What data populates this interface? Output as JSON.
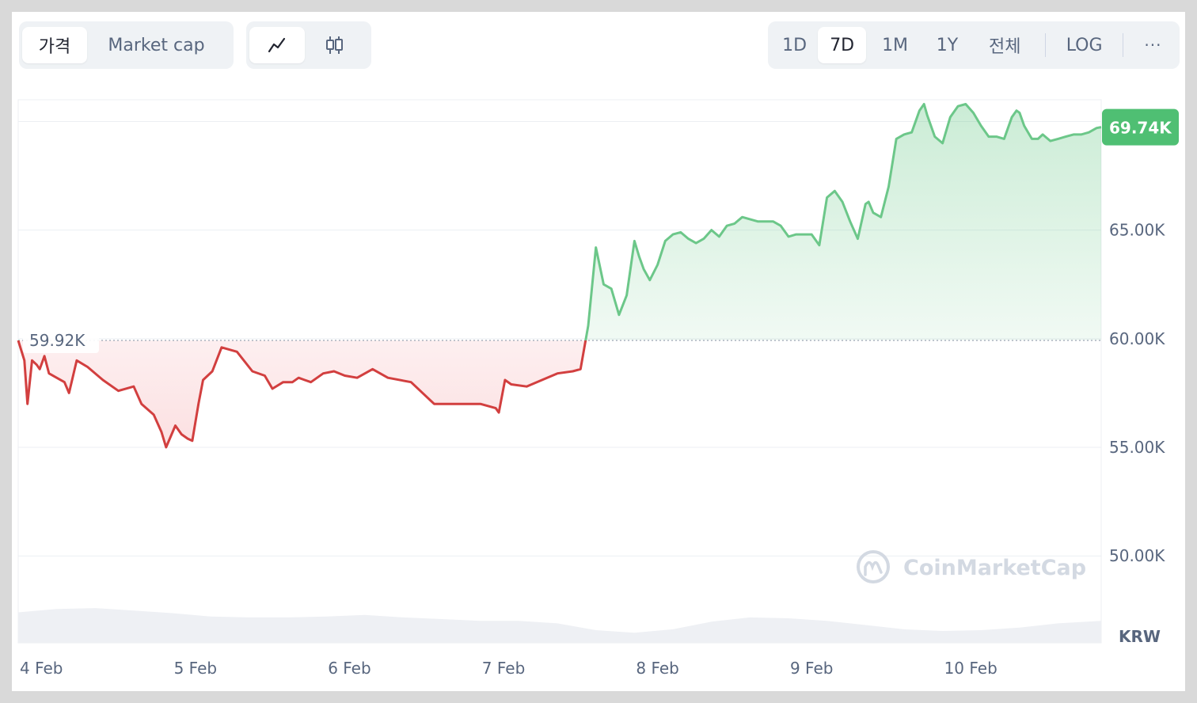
{
  "toolbar": {
    "type_tabs": [
      "가격",
      "Market cap"
    ],
    "active_type": "가격",
    "chart_modes": [
      "line-chart-icon",
      "candlestick-icon"
    ],
    "active_mode": "line-chart-icon",
    "ranges": [
      "1D",
      "7D",
      "1M",
      "1Y",
      "전체"
    ],
    "active_range": "7D",
    "log_label": "LOG",
    "more_label": "···"
  },
  "colors": {
    "up": "#4fbf73",
    "down": "#ea3943",
    "line_up": "#6cc789",
    "line_down": "#d23f3f",
    "grid": "#eceff3",
    "axis_text": "#58667e",
    "volume": "#eef0f4"
  },
  "watermark": "CoinMarketCap",
  "chart_data": {
    "type": "line",
    "currency": "KRW",
    "ylim": [
      46000,
      71000
    ],
    "y_ticks": [
      50000,
      55000,
      60000,
      65000
    ],
    "y_tick_labels": [
      "50.00K",
      "55.00K",
      "60.00K",
      "65.00K"
    ],
    "x_ticks": [
      "4 Feb",
      "5 Feb",
      "6 Feb",
      "7 Feb",
      "8 Feb",
      "9 Feb",
      "10 Feb"
    ],
    "x_range_days": [
      0,
      7.03
    ],
    "open_price": 59920,
    "open_label": "59.92K",
    "current_price": 69740,
    "current_label": "69.74K",
    "grid": true,
    "series": [
      {
        "x": [
          0,
          0.04,
          0.06,
          0.09,
          0.12,
          0.14,
          0.17,
          0.2,
          0.25,
          0.3,
          0.33,
          0.38,
          0.45,
          0.55,
          0.65,
          0.75,
          0.8,
          0.88,
          0.93,
          0.96,
          1.02,
          1.06,
          1.1,
          1.13,
          1.17,
          1.2,
          1.26,
          1.32,
          1.42,
          1.52,
          1.6,
          1.65,
          1.72,
          1.78,
          1.82,
          1.86,
          1.9,
          1.98,
          2.05,
          2.12,
          2.2,
          2.3,
          2.4,
          2.55,
          2.7,
          2.85,
          3.0,
          3.1,
          3.12,
          3.16,
          3.2,
          3.3,
          3.4,
          3.5,
          3.6,
          3.65,
          3.7,
          3.75,
          3.8,
          3.85,
          3.9,
          3.95,
          4.0,
          4.03,
          4.06,
          4.1,
          4.15,
          4.2,
          4.25,
          4.3,
          4.35,
          4.4,
          4.45,
          4.5,
          4.55,
          4.6,
          4.65,
          4.7,
          4.75,
          4.8,
          4.85,
          4.9,
          4.95,
          5.0,
          5.05,
          5.1,
          5.15,
          5.2,
          5.25,
          5.3,
          5.35,
          5.4,
          5.45,
          5.5,
          5.52,
          5.55,
          5.6,
          5.65,
          5.7,
          5.75,
          5.8,
          5.85,
          5.88,
          5.9,
          5.95,
          6.0,
          6.05,
          6.1,
          6.15,
          6.2,
          6.25,
          6.3,
          6.35,
          6.4,
          6.45,
          6.48,
          6.5,
          6.53,
          6.58,
          6.62,
          6.65,
          6.7,
          6.75,
          6.8,
          6.85,
          6.9,
          6.95,
          7.0,
          7.03
        ],
        "y": [
          59920,
          59000,
          57000,
          59000,
          58800,
          58600,
          59200,
          58400,
          58200,
          58000,
          57500,
          59000,
          58700,
          58100,
          57600,
          57800,
          57000,
          56500,
          55700,
          55000,
          56000,
          55600,
          55400,
          55300,
          57000,
          58100,
          58500,
          59600,
          59400,
          58500,
          58300,
          57700,
          58000,
          58000,
          58200,
          58100,
          58000,
          58400,
          58500,
          58300,
          58200,
          58600,
          58200,
          58000,
          57000,
          57000,
          57000,
          56800,
          56600,
          58100,
          57900,
          57800,
          58100,
          58400,
          58500,
          58600,
          60600,
          64200,
          62500,
          62300,
          61100,
          62000,
          64500,
          63800,
          63200,
          62700,
          63400,
          64500,
          64800,
          64900,
          64600,
          64400,
          64600,
          65000,
          64700,
          65200,
          65300,
          65600,
          65500,
          65400,
          65400,
          65400,
          65200,
          64700,
          64800,
          64800,
          64800,
          64300,
          66500,
          66800,
          66300,
          65400,
          64600,
          66200,
          66300,
          65800,
          65600,
          67000,
          69200,
          69400,
          69500,
          70500,
          70800,
          70300,
          69300,
          69000,
          70200,
          70700,
          70800,
          70400,
          69800,
          69300,
          69300,
          69200,
          70200,
          70500,
          70400,
          69800,
          69200,
          69200,
          69400,
          69100,
          69200,
          69300,
          69400,
          69400,
          69500,
          69700,
          69740
        ]
      },
      {
        "name": "",
        "x": [
          0,
          0.25,
          0.5,
          0.75,
          1.0,
          1.25,
          1.5,
          1.75,
          2.0,
          2.25,
          2.5,
          2.75,
          3.0,
          3.25,
          3.5,
          3.75,
          4.0,
          4.25,
          4.5,
          4.75,
          5.0,
          5.25,
          5.5,
          5.75,
          6.0,
          6.25,
          6.5,
          6.75,
          7.03
        ],
        "y": [
          3.6,
          4.0,
          4.1,
          3.8,
          3.5,
          3.1,
          3.0,
          3.0,
          3.1,
          3.3,
          3.0,
          2.8,
          2.6,
          2.6,
          2.3,
          1.5,
          1.2,
          1.6,
          2.5,
          3.0,
          2.9,
          2.6,
          2.1,
          1.6,
          1.4,
          1.5,
          1.8,
          2.3,
          2.6
        ]
      }
    ]
  }
}
